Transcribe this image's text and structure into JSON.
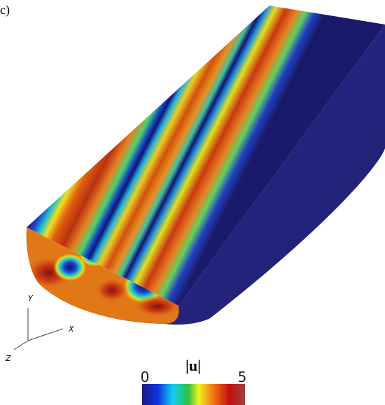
{
  "panel_label": "c)",
  "axes": {
    "y": "Y",
    "x": "X",
    "z": "Z"
  },
  "colorbar": {
    "label": "|u|",
    "lim": [
      0,
      5
    ],
    "ticks": [
      0,
      5
    ]
  }
}
